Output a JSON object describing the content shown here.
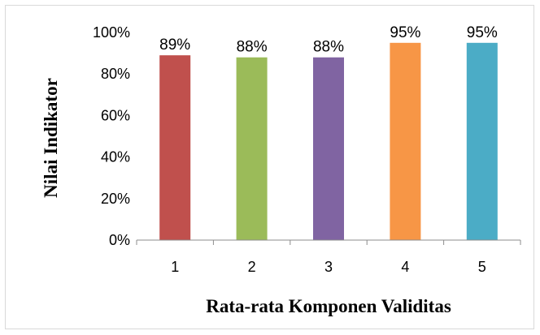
{
  "chart_data": {
    "type": "bar",
    "categories": [
      "1",
      "2",
      "3",
      "4",
      "5"
    ],
    "values": [
      89,
      88,
      88,
      95,
      95
    ],
    "data_labels": [
      "89%",
      "88%",
      "88%",
      "95%",
      "95%"
    ],
    "colors": [
      "#c0504d",
      "#9bbb59",
      "#8064a2",
      "#f79646",
      "#4bacc6"
    ],
    "xlabel": "Rata-rata Komponen Validitas",
    "ylabel": "Nilai Indikator",
    "ylim": [
      0,
      100
    ],
    "yticks": [
      0,
      20,
      40,
      60,
      80,
      100
    ],
    "ytick_labels": [
      "0%",
      "20%",
      "40%",
      "60%",
      "80%",
      "100%"
    ],
    "grid": false,
    "legend": "none"
  }
}
